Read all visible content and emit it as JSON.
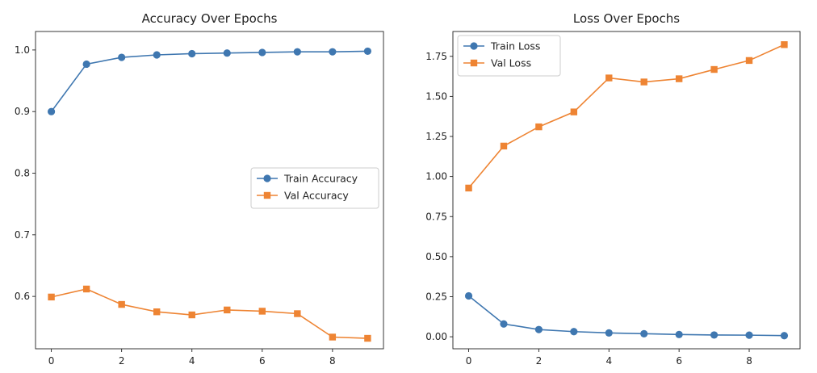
{
  "chart_data": [
    {
      "type": "line",
      "title": "Accuracy Over Epochs",
      "xlabel": "",
      "ylabel": "",
      "x": [
        0,
        1,
        2,
        3,
        4,
        5,
        6,
        7,
        8,
        9
      ],
      "xlim": [
        -0.45,
        9.45
      ],
      "ylim": [
        0.515,
        1.03
      ],
      "xticks": [
        0,
        2,
        4,
        6,
        8
      ],
      "yticks": [
        0.6,
        0.7,
        0.8,
        0.9,
        1.0
      ],
      "ytick_labels": [
        "0.6",
        "0.7",
        "0.8",
        "0.9",
        "1.0"
      ],
      "grid": false,
      "legend_position": "center-right",
      "series": [
        {
          "name": "Train Accuracy",
          "color": "#3f77b0",
          "marker": "circle",
          "values": [
            0.9,
            0.977,
            0.988,
            0.992,
            0.994,
            0.995,
            0.996,
            0.997,
            0.997,
            0.998
          ]
        },
        {
          "name": "Val Accuracy",
          "color": "#ee8433",
          "marker": "square",
          "values": [
            0.599,
            0.612,
            0.587,
            0.575,
            0.57,
            0.578,
            0.576,
            0.572,
            0.534,
            0.532
          ]
        }
      ]
    },
    {
      "type": "line",
      "title": "Loss Over Epochs",
      "xlabel": "",
      "ylabel": "",
      "x": [
        0,
        1,
        2,
        3,
        4,
        5,
        6,
        7,
        8,
        9
      ],
      "xlim": [
        -0.45,
        9.45
      ],
      "ylim": [
        -0.075,
        1.905
      ],
      "xticks": [
        0,
        2,
        4,
        6,
        8
      ],
      "yticks": [
        0.0,
        0.25,
        0.5,
        0.75,
        1.0,
        1.25,
        1.5,
        1.75
      ],
      "ytick_labels": [
        "0.00",
        "0.25",
        "0.50",
        "0.75",
        "1.00",
        "1.25",
        "1.50",
        "1.75"
      ],
      "grid": false,
      "legend_position": "top-left",
      "series": [
        {
          "name": "Train Loss",
          "color": "#3f77b0",
          "marker": "circle",
          "values": [
            0.255,
            0.08,
            0.045,
            0.032,
            0.024,
            0.019,
            0.014,
            0.011,
            0.01,
            0.007
          ]
        },
        {
          "name": "Val Loss",
          "color": "#ee8433",
          "marker": "square",
          "values": [
            0.928,
            1.19,
            1.31,
            1.403,
            1.615,
            1.59,
            1.61,
            1.668,
            1.724,
            1.823
          ]
        }
      ]
    }
  ]
}
